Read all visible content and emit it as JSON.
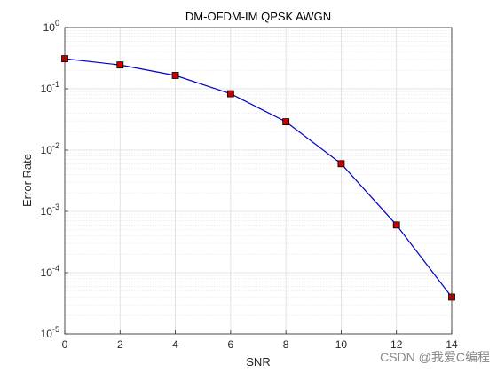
{
  "chart_data": {
    "type": "line",
    "title": "DM-OFDM-IM QPSK AWGN",
    "x_label": "SNR",
    "y_label": "Error Rate",
    "x": [
      0,
      2,
      4,
      6,
      8,
      10,
      12,
      14
    ],
    "series": [
      {
        "color": "#0000c8",
        "marker_color": "#c80000",
        "values": [
          0.31,
          0.245,
          0.165,
          0.083,
          0.029,
          0.006,
          0.0006,
          4e-05
        ]
      }
    ],
    "xlim": [
      0,
      14
    ],
    "xticks": [
      0,
      2,
      4,
      6,
      8,
      10,
      12,
      14
    ],
    "ylim": [
      1e-05,
      1
    ],
    "y_log": true,
    "yticks": [
      {
        "value": 1e-05,
        "label": "10^-5"
      },
      {
        "value": 0.0001,
        "label": "10^-4"
      },
      {
        "value": 0.001,
        "label": "10^-3"
      },
      {
        "value": 0.01,
        "label": "10^-2"
      },
      {
        "value": 0.1,
        "label": "10^-1"
      },
      {
        "value": 1,
        "label": "10^0"
      }
    ],
    "grid": true,
    "minor_grid": true,
    "watermark": "CSDN @我爱C编程"
  }
}
